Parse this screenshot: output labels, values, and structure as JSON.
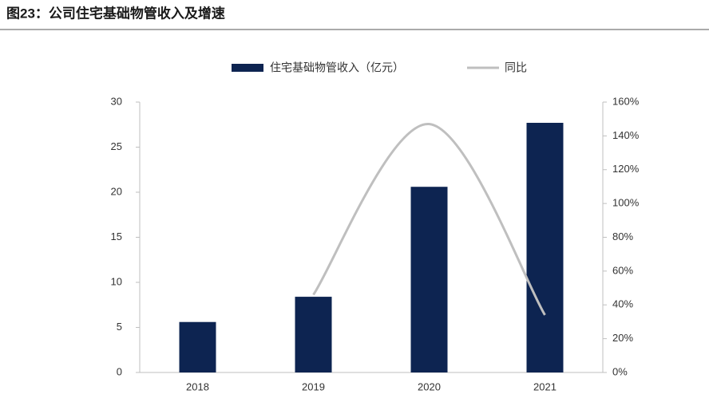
{
  "chart_data": {
    "type": "bar",
    "title": "图23：公司住宅基础物管收入及增速",
    "categories": [
      "2018",
      "2019",
      "2020",
      "2021"
    ],
    "series": [
      {
        "name": "住宅基础物管收入（亿元）",
        "type": "bar",
        "color": "#0d2451",
        "values": [
          5.6,
          8.4,
          20.6,
          27.7
        ]
      },
      {
        "name": "同比",
        "type": "line",
        "color": "#bfbfbf",
        "axis": "y2",
        "values": [
          null,
          46,
          147,
          34
        ]
      }
    ],
    "ylim": [
      0,
      30
    ],
    "yticks": [
      0,
      5,
      10,
      15,
      20,
      25,
      30
    ],
    "y2lim": [
      0,
      160
    ],
    "y2ticks": [
      {
        "value": 0,
        "label": "0%"
      },
      {
        "value": 20,
        "label": "20%"
      },
      {
        "value": 40,
        "label": "40%"
      },
      {
        "value": 60,
        "label": "60%"
      },
      {
        "value": 80,
        "label": "80%"
      },
      {
        "value": 100,
        "label": "100%"
      },
      {
        "value": 120,
        "label": "120%"
      },
      {
        "value": 140,
        "label": "140%"
      },
      {
        "value": 160,
        "label": "160%"
      }
    ],
    "legend": "top"
  }
}
